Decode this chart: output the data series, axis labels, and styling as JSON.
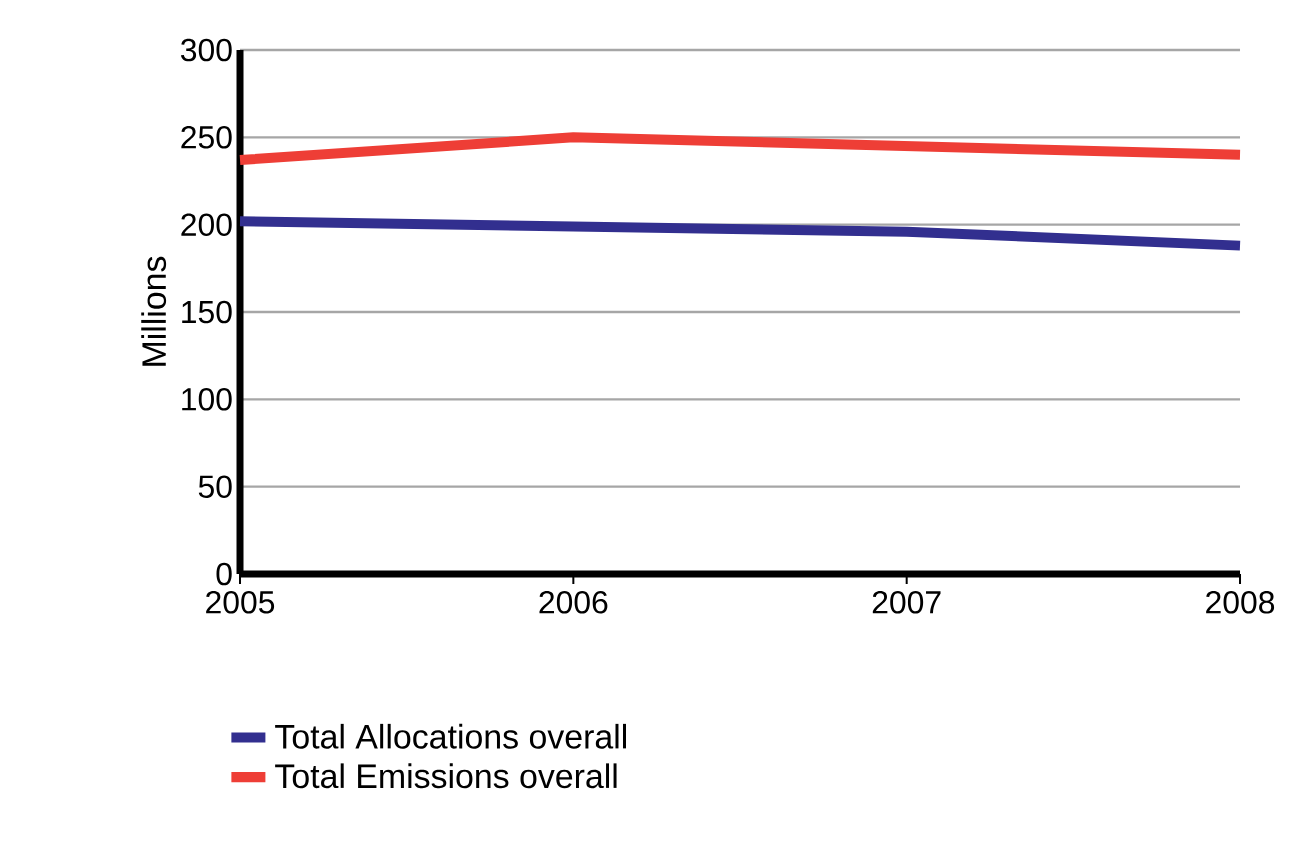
{
  "chart_data": {
    "type": "line",
    "ylabel": "Millions",
    "x": [
      2005,
      2006,
      2007,
      2008
    ],
    "xlim": [
      2005,
      2008
    ],
    "xticks": [
      2005,
      2006,
      2007,
      2008
    ],
    "ylim": [
      0,
      300
    ],
    "yticks": [
      0,
      50,
      100,
      150,
      200,
      250,
      300
    ],
    "series": [
      {
        "name": "Total Allocations overall",
        "color": "#322f8f",
        "values": [
          202,
          199,
          196,
          188
        ]
      },
      {
        "name": "Total Emissions overall",
        "color": "#ee3e36",
        "values": [
          237,
          250,
          245,
          240
        ]
      }
    ],
    "grid": "y",
    "legend": "bottom",
    "marker": "none",
    "line_style": "solid"
  }
}
